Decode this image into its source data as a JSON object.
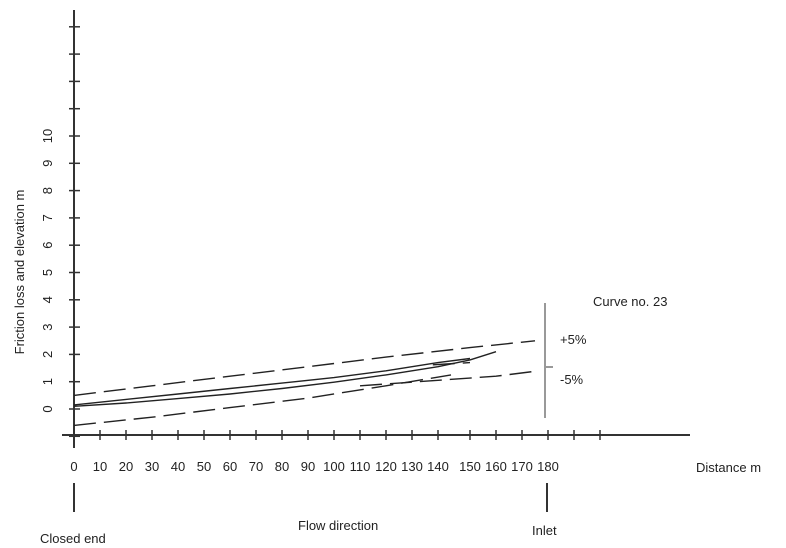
{
  "chart_data": {
    "type": "line",
    "xlabel": "Distance m",
    "ylabel": "Friction loss  and elevation  m",
    "xlim": [
      0,
      180
    ],
    "ylim": [
      -1,
      12
    ],
    "x_ticks": [
      0,
      10,
      20,
      30,
      40,
      50,
      60,
      70,
      80,
      90,
      100,
      110,
      120,
      130,
      140,
      150,
      160,
      170,
      180
    ],
    "y_ticks": [
      0,
      1,
      2,
      3,
      4,
      5,
      6,
      7,
      8,
      9,
      10
    ],
    "series": [
      {
        "name": "",
        "style": "solid",
        "x": [
          0,
          20,
          40,
          60,
          80,
          100,
          120,
          140,
          150,
          160
        ],
        "y": [
          0.1,
          0.22,
          0.38,
          0.55,
          0.75,
          0.98,
          1.25,
          1.55,
          1.8,
          2.1
        ]
      },
      {
        "name": "",
        "style": "solid",
        "x": [
          0,
          20,
          40,
          60,
          80,
          100,
          120,
          140,
          150
        ],
        "y": [
          0.15,
          0.35,
          0.55,
          0.75,
          0.95,
          1.15,
          1.4,
          1.7,
          1.85
        ]
      },
      {
        "name": "",
        "style": "dashed",
        "x": [
          0,
          30,
          60,
          90,
          120,
          150,
          175
        ],
        "y": [
          0.5,
          0.85,
          1.2,
          1.55,
          1.9,
          2.25,
          2.5
        ]
      },
      {
        "name": "",
        "style": "dashed",
        "x": [
          0,
          30,
          60,
          90,
          120,
          145
        ],
        "y": [
          -0.6,
          -0.3,
          0.05,
          0.4,
          0.85,
          1.25
        ]
      },
      {
        "name": "",
        "style": "dashed",
        "x": [
          110,
          140,
          160,
          175
        ],
        "y": [
          0.85,
          1.05,
          1.2,
          1.38
        ]
      },
      {
        "name": "",
        "style": "dashed",
        "x": [
          138,
          150
        ],
        "y": [
          1.62,
          1.7
        ]
      }
    ],
    "annotations": {
      "curve": "Curve no. 23",
      "plus": "+5%",
      "minus": "-5%",
      "closed_end": "Closed end",
      "flow": "Flow direction",
      "inlet": "Inlet"
    }
  }
}
